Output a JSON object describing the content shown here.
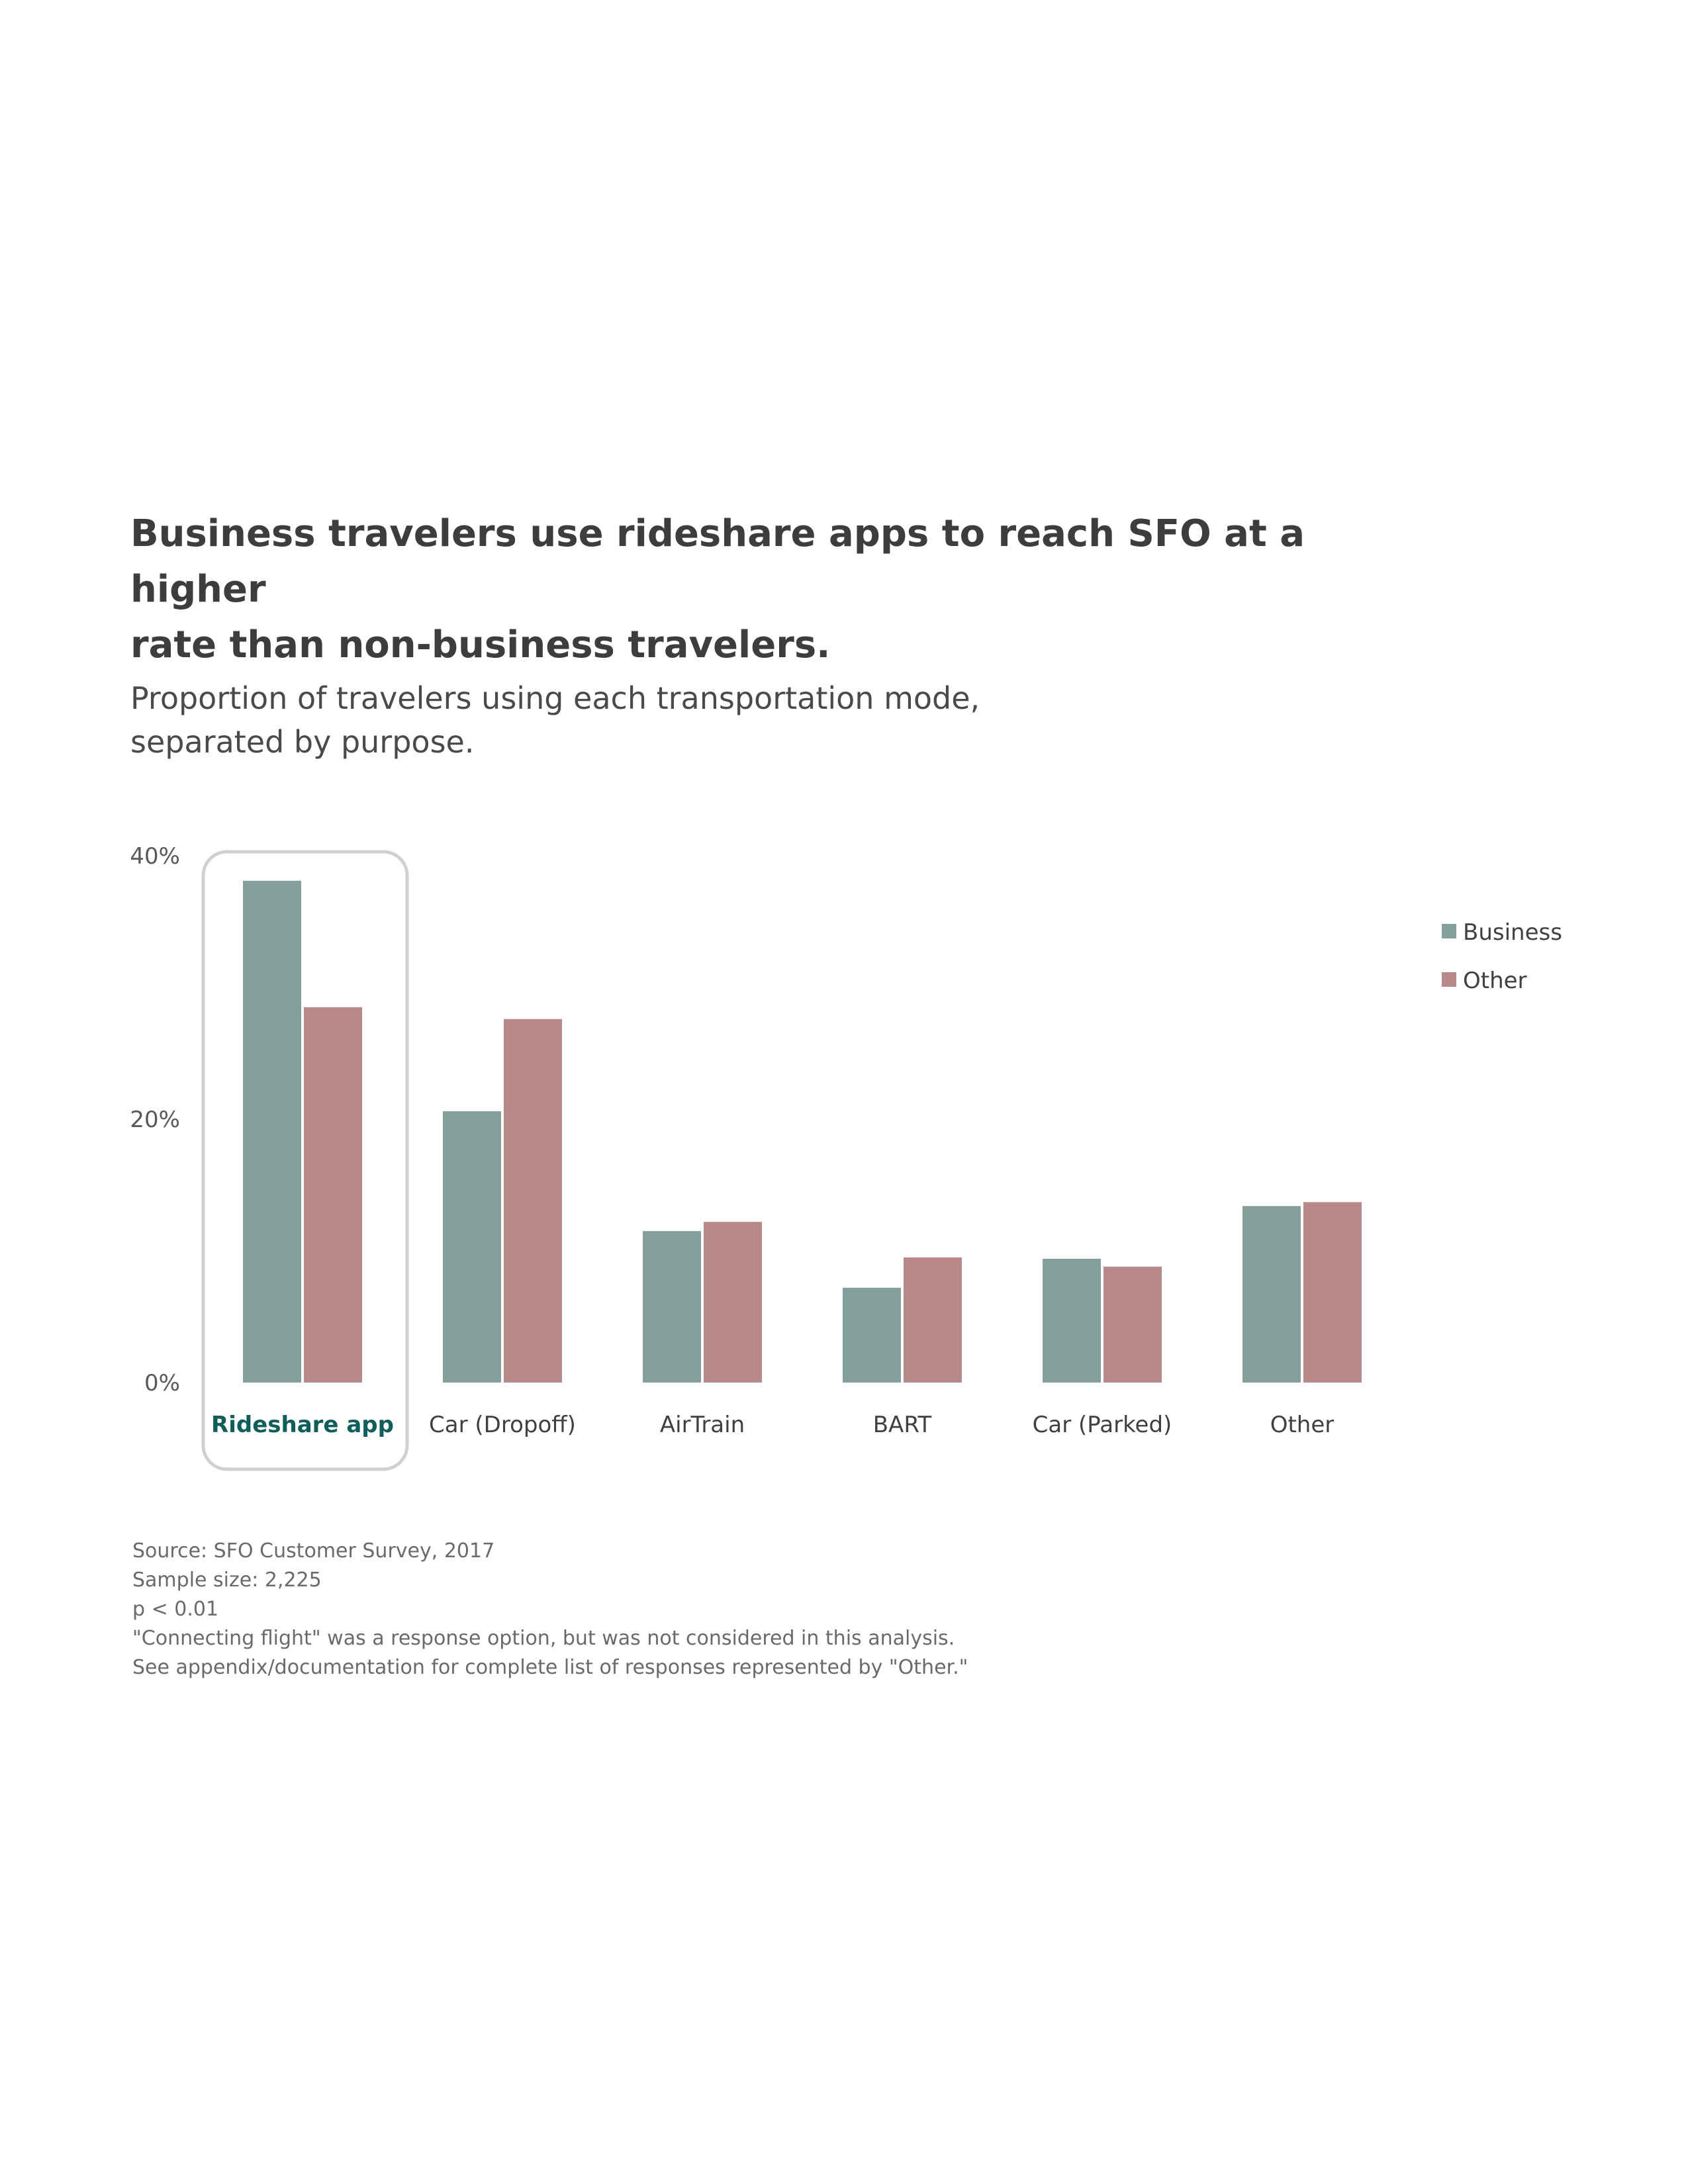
{
  "title_line1": "Business travelers use rideshare apps to reach SFO at a higher",
  "title_line2": "rate than non-business travelers.",
  "subtitle_line1": "Proportion of travelers using each transportation mode,",
  "subtitle_line2": "separated by purpose.",
  "notes": [
    "Source: SFO Customer Survey, 2017",
    "Sample size: 2,225",
    "p < 0.01",
    "\"Connecting flight\" was a response option, but was not considered in this analysis.",
    "See appendix/documentation for complete list of responses represented by \"Other.\""
  ],
  "colors": {
    "business": "#84a09d",
    "other": "#b98889",
    "highlight_label": "#0f5e5a",
    "highlight_box": "#d0d0d0"
  },
  "chart_data": {
    "type": "bar",
    "categories": [
      "Rideshare app",
      "Car (Dropoff)",
      "AirTrain",
      "BART",
      "Car (Parked)",
      "Other"
    ],
    "highlighted_category": "Rideshare app",
    "series": [
      {
        "name": "Business",
        "values": [
          38.1,
          20.6,
          11.5,
          7.2,
          9.4,
          13.4
        ]
      },
      {
        "name": "Other",
        "values": [
          28.5,
          27.6,
          12.2,
          9.5,
          8.8,
          13.7
        ]
      }
    ],
    "y_ticks": [
      "0%",
      "20%",
      "40%"
    ],
    "y_tick_values": [
      0,
      20,
      40
    ],
    "ylim": [
      0,
      40
    ],
    "grid": false,
    "legend_position": "right"
  }
}
